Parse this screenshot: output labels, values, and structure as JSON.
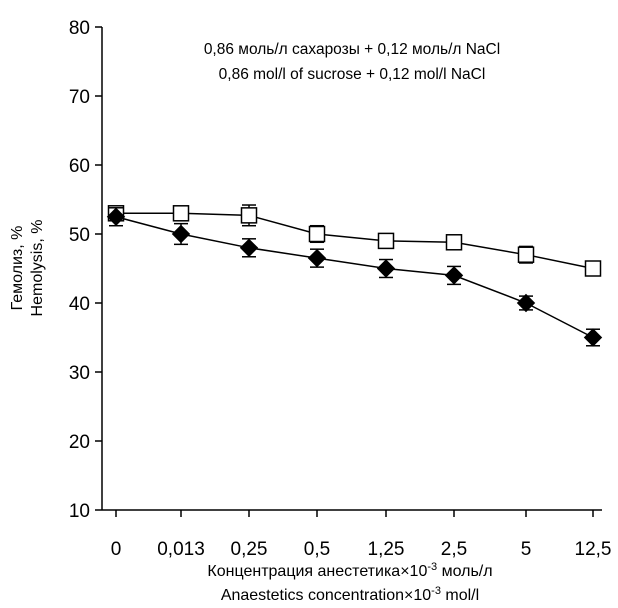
{
  "chart_data": {
    "type": "line",
    "categories": [
      "0",
      "0,013",
      "0,25",
      "0,5",
      "1,25",
      "2,5",
      "5",
      "12,5"
    ],
    "ylim": [
      10,
      80
    ],
    "yticks": [
      10,
      20,
      30,
      40,
      50,
      60,
      70,
      80
    ],
    "grid": false,
    "ylabel_line1": "Гемолиз, %",
    "ylabel_line2": "Hemolysis, %",
    "xlabel_line1": "Концентрация анестетика×10",
    "xlabel_line1_exp": "-3",
    "xlabel_line1_unit": " моль/л",
    "xlabel_line2": "Anaestetics concentration×10",
    "xlabel_line2_exp": "-3",
    "xlabel_line2_unit": " mol/l",
    "annotation_line1": "0,86 моль/л сахарозы + 0,12 моль/л NaCl",
    "annotation_line2": "0,86 mol/l of sucrose + 0,12 mol/l NaCl",
    "series": [
      {
        "marker": "open-square",
        "values": [
          53,
          53,
          52.7,
          50,
          49,
          48.8,
          47,
          45
        ],
        "errors": [
          1.0,
          1.0,
          1.5,
          1.2,
          1.0,
          1.0,
          1.2,
          1.0
        ]
      },
      {
        "marker": "filled-diamond",
        "values": [
          52.5,
          50,
          48,
          46.5,
          45,
          44,
          40,
          35
        ],
        "errors": [
          1.3,
          1.5,
          1.3,
          1.3,
          1.3,
          1.3,
          1.0,
          1.2
        ]
      }
    ]
  }
}
